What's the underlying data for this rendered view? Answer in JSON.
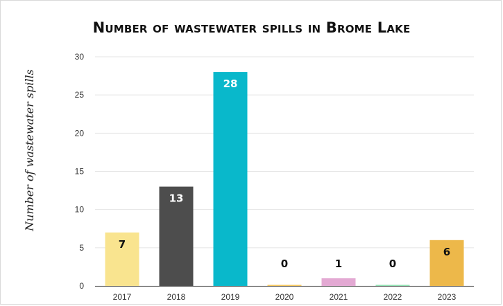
{
  "chart_data": {
    "type": "bar",
    "title": "Number of wastewater spills in Brome Lake",
    "ylabel": "Number of wastewater spills",
    "xlabel": "",
    "categories": [
      "2017",
      "2018",
      "2019",
      "2020",
      "2021",
      "2022",
      "2023"
    ],
    "values": [
      7,
      13,
      28,
      0,
      1,
      0,
      6
    ],
    "colors": [
      "#f9e48f",
      "#4d4d4d",
      "#09b8cb",
      "#f5c65c",
      "#e3a9d3",
      "#8fe0b0",
      "#edb84a"
    ],
    "label_colors": [
      "#111111",
      "#ffffff",
      "#ffffff",
      "#111111",
      "#111111",
      "#111111",
      "#111111"
    ],
    "ylim": [
      0,
      30
    ],
    "yticks": [
      "0",
      "5",
      "10",
      "15",
      "20",
      "25",
      "30"
    ],
    "grid": true,
    "legend": "none"
  }
}
